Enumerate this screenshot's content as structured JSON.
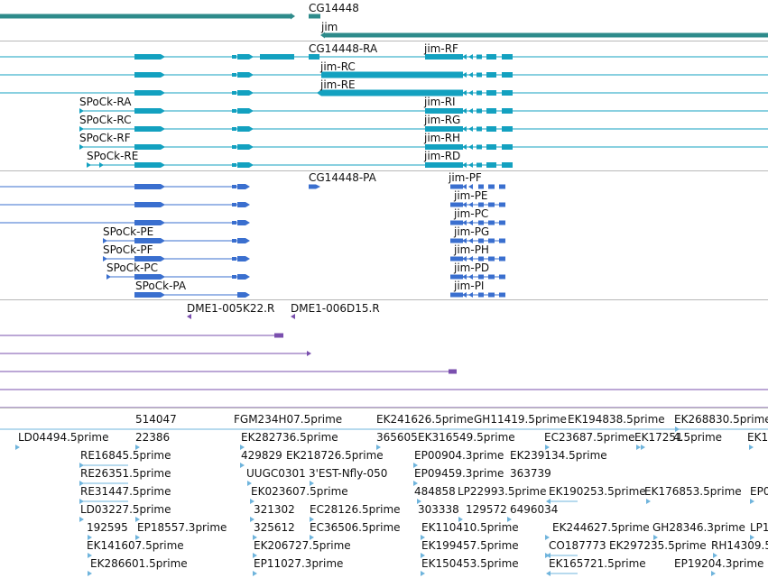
{
  "colors": {
    "gene": "#2e8b8b",
    "transcript": "#13a1c0",
    "protein": "#3a6fcf",
    "probe": "#7a4fae",
    "est": "#6fb4dc",
    "divider": "#b8b8b8"
  },
  "tracks": {
    "genes": {
      "labels": [
        "CG14448",
        "jim"
      ]
    },
    "transcripts": {
      "labels": [
        "CG14448-RA",
        "jim-RF",
        "jim-RC",
        "jim-RE",
        "SPoCk-RA",
        "jim-RI",
        "SPoCk-RC",
        "jim-RG",
        "SPoCk-RF",
        "jim-RH",
        "SPoCk-RE",
        "jim-RD"
      ]
    },
    "proteins": {
      "labels": [
        "CG14448-PA",
        "jim-PF",
        "jim-PE",
        "jim-PC",
        "SPoCk-PE",
        "jim-PG",
        "SPoCk-PF",
        "jim-PH",
        "SPoCk-PC",
        "jim-PD",
        "SPoCk-PA",
        "jim-PI"
      ]
    },
    "probes": {
      "labels": [
        "DME1-005K22.R",
        "DME1-006D15.R"
      ]
    },
    "ests": {
      "labels": [
        "514047",
        "FGM234H07.5prime",
        "EK241626.5prime",
        "GH11419.5prime",
        "EK194838.5prime",
        "EK268830.5prime",
        "LD04494.5prime",
        "22386",
        "EK282736.5prime",
        "365605",
        "EK316549.5prime",
        "EC23687.5prime",
        "EK17251",
        "4.5prime",
        "EK1",
        "RE16845.5prime",
        "429829",
        "EK218726.5prime",
        "EP00904.3prime",
        "EK239134.5prime",
        "RE26351.5prime",
        "UUGC0301",
        "3'EST-Nfly-050",
        "EP09459.3prime",
        "363739",
        "RE31447.5prime",
        "EK023607.5prime",
        "484858",
        "LP22993.5prime",
        "EK190253.5prime",
        "EK176853.5prime",
        "EP0",
        "LD03227.5prime",
        "321302",
        "EC28126.5prime",
        "303338",
        "129572",
        "6496034",
        "192595",
        "EP18557.3prime",
        "325612",
        "EC36506.5prime",
        "EK110410.5prime",
        "EK244627.5prime",
        "GH28346.3prime",
        "LP1",
        "EK141607.5prime",
        "EK206727.5prime",
        "EK199457.5prime",
        "CO187773",
        "EK297235.5prime",
        "RH14309.5",
        "EK286601.5prime",
        "EP11027.3prime",
        "EK150453.5prime",
        "EK165721.5prime",
        "EP19204.3prime"
      ]
    }
  }
}
